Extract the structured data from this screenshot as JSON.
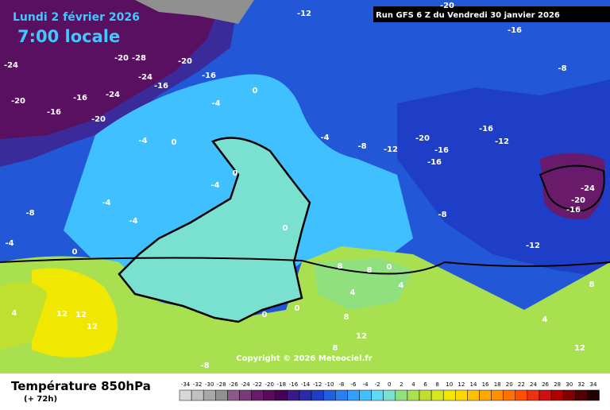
{
  "header": {
    "date": "Lundi 2 février 2026",
    "time": "7:00 locale",
    "run": "Run GFS 6 Z du Vendredi 30 janvier 2026"
  },
  "footer": {
    "title": "Température 850hPa",
    "lead": "(+ 72h)",
    "copyright": "Copyright © 2026 Meteociel.fr"
  },
  "legend": {
    "ticks": [
      -34,
      -32,
      -30,
      -28,
      -26,
      -24,
      -22,
      -20,
      -18,
      -16,
      -14,
      -12,
      -10,
      -8,
      -6,
      -4,
      -2,
      0,
      2,
      4,
      6,
      8,
      10,
      12,
      14,
      16,
      18,
      20,
      22,
      24,
      26,
      28,
      30,
      32,
      34
    ],
    "colors": [
      "#d8d8d8",
      "#c0c0c0",
      "#a8a8a8",
      "#909090",
      "#8a5a8a",
      "#7a3a7a",
      "#6a1a6a",
      "#5a0a5a",
      "#46005a",
      "#3a1a8a",
      "#2a2aaa",
      "#1e3ec8",
      "#2060e0",
      "#2a80f0",
      "#30a0f8",
      "#40c0ff",
      "#60d8f8",
      "#7ae0d0",
      "#90e080",
      "#a8e050",
      "#c0e030",
      "#d8e820",
      "#f0e800",
      "#ffd800",
      "#ffc000",
      "#ffa800",
      "#ff9000",
      "#ff7000",
      "#ff5000",
      "#f03010",
      "#d01010",
      "#b00000",
      "#800000",
      "#500000",
      "#200000"
    ]
  },
  "contour_labels": [
    -12,
    -16,
    -20,
    -24,
    -20,
    -28,
    -24,
    -20,
    -16,
    -16,
    -16,
    -24,
    -20,
    -16,
    -20,
    -4,
    0,
    -4,
    0,
    -4,
    -8,
    -12,
    -20,
    -16,
    -16,
    -12,
    -16,
    -24,
    -20,
    -16,
    -8,
    -8,
    -12,
    -4,
    -4,
    -8,
    -4,
    0,
    0,
    -4,
    0,
    8,
    8,
    0,
    4,
    12,
    12,
    12,
    4,
    0,
    0,
    8,
    4,
    12,
    8,
    -8,
    12,
    8,
    4
  ]
}
